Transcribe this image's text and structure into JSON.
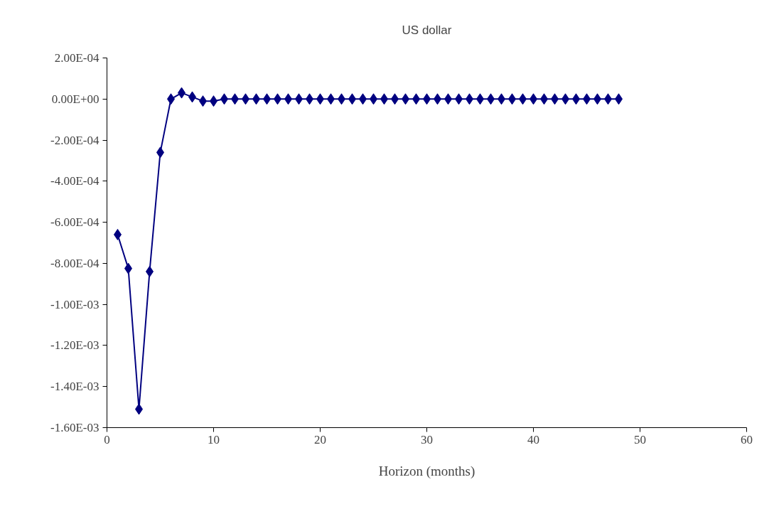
{
  "chart_data": {
    "type": "line",
    "title": "US dollar",
    "xlabel": "Horizon (months)",
    "x": [
      1,
      2,
      3,
      4,
      5,
      6,
      7,
      8,
      9,
      10,
      11,
      12,
      13,
      14,
      15,
      16,
      17,
      18,
      19,
      20,
      21,
      22,
      23,
      24,
      25,
      26,
      27,
      28,
      29,
      30,
      31,
      32,
      33,
      34,
      35,
      36,
      37,
      38,
      39,
      40,
      41,
      42,
      43,
      44,
      45,
      46,
      47,
      48
    ],
    "series": [
      {
        "color": "#000080",
        "values": [
          -0.00066,
          -0.000825,
          -0.00151,
          -0.00084,
          -0.00026,
          0,
          3e-05,
          1e-05,
          -1e-05,
          -1e-05,
          0,
          0,
          0,
          0,
          0,
          0,
          0,
          0,
          0,
          0,
          0,
          0,
          0,
          0,
          0,
          0,
          0,
          0,
          0,
          0,
          0,
          0,
          0,
          0,
          0,
          0,
          0,
          0,
          0,
          0,
          0,
          0,
          0,
          0,
          0,
          0,
          0,
          0
        ]
      }
    ],
    "xlim": [
      0,
      60
    ],
    "xticks": [
      0,
      10,
      20,
      30,
      40,
      50,
      60
    ],
    "ylim": [
      -0.0016,
      0.0002
    ],
    "yticks": [
      {
        "value": -0.0016,
        "label": "-1.60E-03"
      },
      {
        "value": -0.0014,
        "label": "-1.40E-03"
      },
      {
        "value": -0.0012,
        "label": "-1.20E-03"
      },
      {
        "value": -0.001,
        "label": "-1.00E-03"
      },
      {
        "value": -0.0008,
        "label": "-8.00E-04"
      },
      {
        "value": -0.0006,
        "label": "-6.00E-04"
      },
      {
        "value": -0.0004,
        "label": "-4.00E-04"
      },
      {
        "value": -0.0002,
        "label": "-2.00E-04"
      },
      {
        "value": 0,
        "label": "0.00E+00"
      },
      {
        "value": 0.0002,
        "label": "2.00E-04"
      }
    ],
    "grid": false,
    "marker": "diamond",
    "line_style": "solid"
  }
}
